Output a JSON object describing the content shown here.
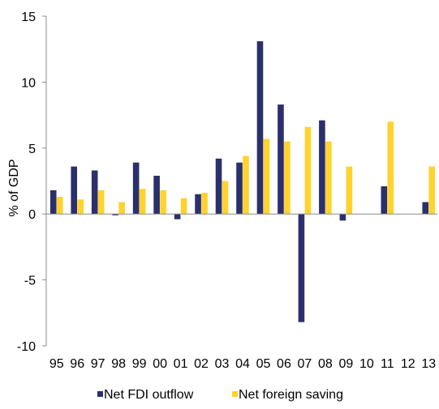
{
  "chart_data": {
    "type": "bar",
    "title": "",
    "xlabel": "",
    "ylabel": "% of GDP",
    "ylim": [
      -10,
      15
    ],
    "yticks": [
      -10,
      -5,
      0,
      5,
      10,
      15
    ],
    "grid": false,
    "legend_position": "bottom",
    "categories": [
      "95",
      "96",
      "97",
      "98",
      "99",
      "00",
      "01",
      "02",
      "03",
      "04",
      "05",
      "06",
      "07",
      "08",
      "09",
      "10",
      "11",
      "12",
      "13"
    ],
    "series": [
      {
        "name": "Net FDI outflow",
        "color": "#2B2F6B",
        "values": [
          1.8,
          3.6,
          3.3,
          -0.1,
          3.9,
          2.9,
          -0.4,
          1.5,
          4.2,
          3.9,
          13.1,
          8.3,
          -8.2,
          7.1,
          -0.5,
          0,
          2.1,
          0,
          0.9
        ]
      },
      {
        "name": "Net foreign saving",
        "color": "#FFD22E",
        "values": [
          1.3,
          1.1,
          1.8,
          0.9,
          1.9,
          1.8,
          1.2,
          1.6,
          2.5,
          4.4,
          5.7,
          5.5,
          6.6,
          5.5,
          3.6,
          0,
          7.0,
          0,
          3.6
        ]
      }
    ]
  }
}
